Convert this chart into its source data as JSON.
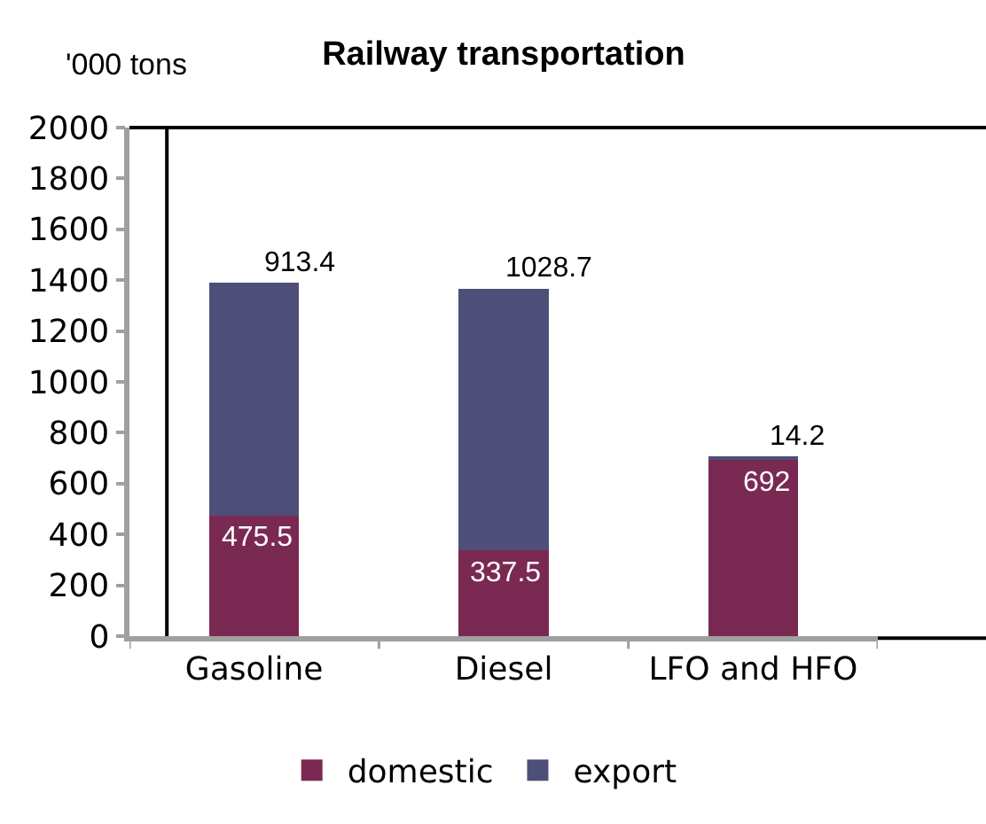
{
  "chart_data": {
    "type": "bar",
    "title": "Railway transportation",
    "ylabel": "'000 tons",
    "categories": [
      "Gasoline",
      "Diesel",
      "LFO and HFO"
    ],
    "stacked": true,
    "series": [
      {
        "name": "domestic",
        "color": "#7a2a52",
        "values": [
          475.5,
          337.5,
          692
        ]
      },
      {
        "name": "export",
        "color": "#4e4f78",
        "values": [
          913.4,
          1028.7,
          14.2
        ]
      }
    ],
    "ylim": [
      0,
      2000
    ],
    "yticks": [
      0,
      200,
      400,
      600,
      800,
      1000,
      1200,
      1400,
      1600,
      1800,
      2000
    ],
    "data_labels": true,
    "legend": "bottom",
    "grid": false
  }
}
